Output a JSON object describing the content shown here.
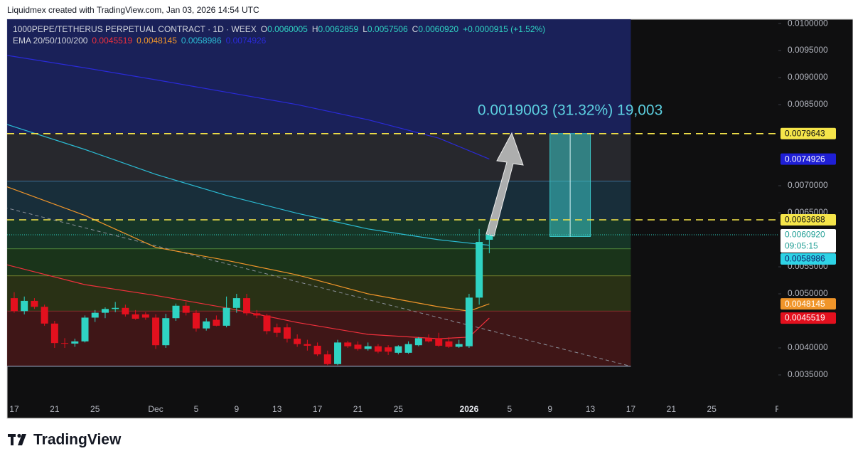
{
  "header": {
    "credit": "Liquidmex created with TradingView.com, Jan 03, 2026 14:54 UTC"
  },
  "footer": {
    "brand": "TradingView"
  },
  "chart_data": {
    "type": "candlestick",
    "symbol": "1000PEPE/TETHERUS PERPETUAL CONTRACT · 1D · WEEX",
    "ohlc_legend": [
      {
        "key": "O",
        "text": "0.0060005"
      },
      {
        "key": "H",
        "text": "0.0062859"
      },
      {
        "key": "L",
        "text": "0.0057506"
      },
      {
        "key": "C",
        "text": "0.0060920"
      }
    ],
    "change": "+0.0000915 (+1.52%)",
    "ema_legend": "EMA 20/50/100/200",
    "up_color": "#2fd3c3",
    "down_color": "#e3101e",
    "x": [
      "2025-11-17",
      "2025-11-18",
      "2025-11-19",
      "2025-11-20",
      "2025-11-21",
      "2025-11-22",
      "2025-11-23",
      "2025-11-24",
      "2025-11-25",
      "2025-11-26",
      "2025-11-27",
      "2025-11-28",
      "2025-11-29",
      "2025-11-30",
      "2025-12-01",
      "2025-12-02",
      "2025-12-03",
      "2025-12-04",
      "2025-12-05",
      "2025-12-06",
      "2025-12-07",
      "2025-12-08",
      "2025-12-09",
      "2025-12-10",
      "2025-12-11",
      "2025-12-12",
      "2025-12-13",
      "2025-12-14",
      "2025-12-15",
      "2025-12-16",
      "2025-12-17",
      "2025-12-18",
      "2025-12-19",
      "2025-12-20",
      "2025-12-21",
      "2025-12-22",
      "2025-12-23",
      "2025-12-24",
      "2025-12-25",
      "2025-12-26",
      "2025-12-27",
      "2025-12-28",
      "2025-12-29",
      "2025-12-30",
      "2025-12-31",
      "2026-01-01",
      "2026-01-02",
      "2026-01-03"
    ],
    "open": [
      0.00492,
      0.00468,
      0.00487,
      0.00476,
      0.00445,
      0.00409,
      0.00408,
      0.00412,
      0.00456,
      0.00465,
      0.00472,
      0.00474,
      0.00462,
      0.00462,
      0.00456,
      0.00405,
      0.00455,
      0.00478,
      0.00465,
      0.00436,
      0.00452,
      0.00441,
      0.00474,
      0.00492,
      0.00464,
      0.0046,
      0.00438,
      0.00438,
      0.00417,
      0.00407,
      0.00404,
      0.00388,
      0.0037,
      0.0041,
      0.00406,
      0.00398,
      0.00403,
      0.00401,
      0.00391,
      0.00391,
      0.00405,
      0.00418,
      0.00418,
      0.00412,
      0.00402,
      0.00403,
      0.00493,
      0.0060005
    ],
    "high": [
      0.00503,
      0.00495,
      0.00492,
      0.0048,
      0.0045,
      0.00418,
      0.00417,
      0.0046,
      0.0047,
      0.00475,
      0.00485,
      0.0048,
      0.0047,
      0.00466,
      0.00462,
      0.00463,
      0.00482,
      0.00485,
      0.0047,
      0.00455,
      0.0046,
      0.00495,
      0.005,
      0.005,
      0.0047,
      0.00463,
      0.00445,
      0.00445,
      0.00425,
      0.00415,
      0.0041,
      0.00395,
      0.00415,
      0.00413,
      0.00412,
      0.0041,
      0.00407,
      0.00405,
      0.00405,
      0.00412,
      0.0042,
      0.00425,
      0.00428,
      0.0042,
      0.00415,
      0.005,
      0.0062,
      0.0062859
    ],
    "low": [
      0.00465,
      0.00462,
      0.00472,
      0.00441,
      0.004,
      0.004,
      0.00402,
      0.0041,
      0.00448,
      0.00455,
      0.00466,
      0.00458,
      0.00452,
      0.00452,
      0.00398,
      0.004,
      0.0045,
      0.0046,
      0.0043,
      0.00432,
      0.0044,
      0.00438,
      0.00465,
      0.0046,
      0.00455,
      0.00425,
      0.0042,
      0.0041,
      0.00402,
      0.00395,
      0.00385,
      0.00368,
      0.00368,
      0.004,
      0.00395,
      0.00395,
      0.0039,
      0.00387,
      0.00388,
      0.00389,
      0.00403,
      0.0041,
      0.00402,
      0.004,
      0.004,
      0.004,
      0.0048,
      0.0057506
    ],
    "close": [
      0.00468,
      0.00487,
      0.00476,
      0.00445,
      0.00409,
      0.00408,
      0.00412,
      0.00456,
      0.00465,
      0.00472,
      0.00474,
      0.00462,
      0.00454,
      0.00456,
      0.00405,
      0.00455,
      0.00478,
      0.00465,
      0.00436,
      0.00449,
      0.00441,
      0.00474,
      0.00492,
      0.00464,
      0.0046,
      0.00431,
      0.00428,
      0.00417,
      0.00407,
      0.00404,
      0.00388,
      0.0037,
      0.0041,
      0.00403,
      0.00398,
      0.00403,
      0.00393,
      0.00393,
      0.00403,
      0.00407,
      0.00418,
      0.00412,
      0.00404,
      0.00402,
      0.00407,
      0.00493,
      0.00596,
      0.006092
    ],
    "ema": [
      {
        "color": "#f0303c",
        "x": [
          "2025-11-16",
          "2025-11-24",
          "2025-12-01",
          "2025-12-08",
          "2025-12-15",
          "2025-12-22",
          "2025-12-29",
          "2026-01-01",
          "2026-01-03"
        ],
        "values": [
          0.00555,
          0.00517,
          0.00497,
          0.00474,
          0.00447,
          0.00425,
          0.00417,
          0.0042,
          0.0045519
        ]
      },
      {
        "color": "#f0952a",
        "x": [
          "2025-11-16",
          "2025-11-24",
          "2025-12-01",
          "2025-12-08",
          "2025-12-15",
          "2025-12-22",
          "2025-12-29",
          "2026-01-01",
          "2026-01-03"
        ],
        "values": [
          0.007,
          0.00645,
          0.00586,
          0.00562,
          0.00535,
          0.005,
          0.00476,
          0.00468,
          0.0048145
        ]
      },
      {
        "color": "#2bbcd4",
        "x": [
          "2025-11-16",
          "2025-11-24",
          "2025-12-01",
          "2025-12-08",
          "2025-12-15",
          "2025-12-22",
          "2025-12-29",
          "2026-01-03"
        ],
        "values": [
          0.00815,
          0.00767,
          0.00721,
          0.00682,
          0.00649,
          0.0062,
          0.006,
          0.0058986
        ]
      },
      {
        "color": "#2a2ad8",
        "x": [
          "2025-11-16",
          "2025-11-24",
          "2025-12-01",
          "2025-12-08",
          "2025-12-15",
          "2025-12-22",
          "2025-12-29",
          "2026-01-03"
        ],
        "values": [
          0.00942,
          0.00918,
          0.00896,
          0.00873,
          0.0085,
          0.00822,
          0.00788,
          0.0074926
        ]
      }
    ],
    "zones": [
      {
        "low": 0.0079643,
        "high": 0.0101,
        "fill": "#1c2466"
      },
      {
        "low": 0.00708,
        "high": 0.0079643,
        "fill": "#2b2d33",
        "border": "#4fa3e0"
      },
      {
        "low": 0.0063688,
        "high": 0.00708,
        "fill": "#1a3442"
      },
      {
        "low": 0.00583,
        "high": 0.0063688,
        "fill": "#173d2c",
        "border": "#7cc24a"
      },
      {
        "low": 0.00533,
        "high": 0.00583,
        "fill": "#1c3b1c",
        "border": "#b6b83c"
      },
      {
        "low": 0.00468,
        "high": 0.00533,
        "fill": "#2e3716",
        "border": "#b8413c"
      },
      {
        "low": 0.00366,
        "high": 0.00468,
        "fill": "#481719",
        "border": "#9fb2d2"
      }
    ],
    "zone_end": "2026-01-17",
    "levels": [
      {
        "value": 0.0079643,
        "color": "#f5e54a"
      },
      {
        "value": 0.0063688,
        "color": "#f5e54a"
      }
    ],
    "trendline": {
      "x": [
        "2025-11-16",
        "2026-01-17"
      ],
      "values": [
        0.0066,
        0.00366
      ],
      "color": "#8a8f99"
    },
    "long_position": {
      "x": [
        "2026-01-09",
        "2026-01-13"
      ],
      "values": [
        0.00606,
        0.0079643
      ],
      "color": "#3cc9c9",
      "label": "0.0019003 (31.32%) 19,003",
      "label_color": "#5ccfe0"
    },
    "price_labels": [
      {
        "value": 0.0079643,
        "label": "0.0079643",
        "color": "#f5e54a",
        "text_color": "#111111"
      },
      {
        "value": 0.0074926,
        "label": "0.0074926",
        "color": "#1f1fd6",
        "text_color": "#ffffff"
      },
      {
        "value": 0.0063688,
        "label": "0.0063688",
        "color": "#f5e54a",
        "text_color": "#111111"
      },
      {
        "value": 0.006092,
        "label": "0.0060920",
        "countdown": "09:05:15",
        "color": "#ffffff",
        "text_color": "#1f9e94"
      },
      {
        "value": 0.0058986,
        "label": "0.0058986",
        "color": "#2ed3e6",
        "text_color": "#10206a"
      },
      {
        "value": 0.0048145,
        "label": "0.0048145",
        "color": "#f0952a",
        "text_color": "#ffffff"
      },
      {
        "value": 0.0045519,
        "label": "0.0045519",
        "color": "#e3101e",
        "text_color": "#ffffff"
      }
    ],
    "xlim": [
      "2025-11-16",
      "2026-02-01"
    ],
    "xticks": [
      {
        "value": "2025-11-17",
        "label": "17"
      },
      {
        "value": "2025-11-21",
        "label": "21"
      },
      {
        "value": "2025-11-25",
        "label": "25"
      },
      {
        "value": "2025-12-01",
        "label": "Dec"
      },
      {
        "value": "2025-12-05",
        "label": "5"
      },
      {
        "value": "2025-12-09",
        "label": "9"
      },
      {
        "value": "2025-12-13",
        "label": "13"
      },
      {
        "value": "2025-12-17",
        "label": "17"
      },
      {
        "value": "2025-12-21",
        "label": "21"
      },
      {
        "value": "2025-12-25",
        "label": "25"
      },
      {
        "value": "2026-01-01",
        "label": "2026",
        "emphasis": true
      },
      {
        "value": "2026-01-05",
        "label": "5"
      },
      {
        "value": "2026-01-09",
        "label": "9"
      },
      {
        "value": "2026-01-13",
        "label": "13"
      },
      {
        "value": "2026-01-17",
        "label": "17"
      },
      {
        "value": "2026-01-21",
        "label": "21"
      },
      {
        "value": "2026-01-25",
        "label": "25"
      },
      {
        "value": "2026-02-01",
        "label": "Feb"
      }
    ],
    "ylim": [
      0.003,
      0.01008
    ],
    "yticks": [
      {
        "value": 0.01,
        "label": "0.0100000"
      },
      {
        "value": 0.0095,
        "label": "0.0095000"
      },
      {
        "value": 0.009,
        "label": "0.0090000"
      },
      {
        "value": 0.0085,
        "label": "0.0085000"
      },
      {
        "value": 0.007,
        "label": "0.0070000"
      },
      {
        "value": 0.0065,
        "label": "0.0065000"
      },
      {
        "value": 0.0055,
        "label": "0.0055000"
      },
      {
        "value": 0.005,
        "label": "0.0050000"
      },
      {
        "value": 0.004,
        "label": "0.0040000"
      },
      {
        "value": 0.0035,
        "label": "0.0035000"
      }
    ],
    "grid": false
  }
}
